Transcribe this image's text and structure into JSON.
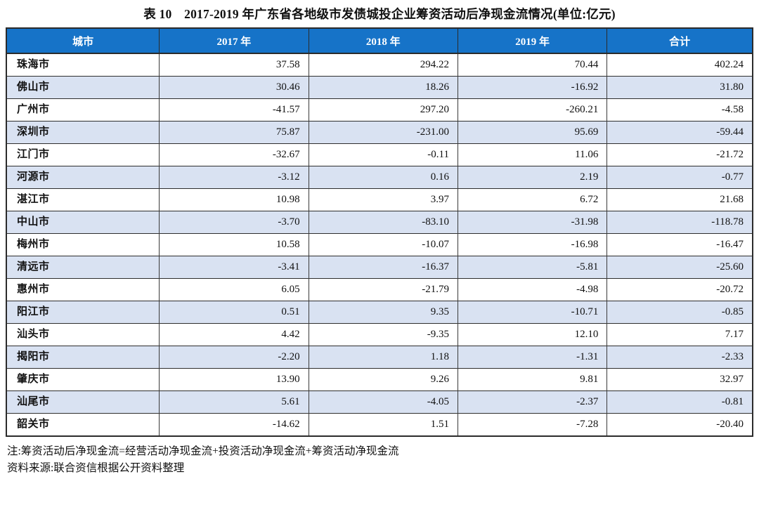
{
  "page": {
    "title": "表 10　2017-2019 年广东省各地级市发债城投企业筹资活动后净现金流情况(单位:亿元)"
  },
  "table": {
    "columns": [
      "城市",
      "2017 年",
      "2018 年",
      "2019 年",
      "合计"
    ],
    "rows": [
      {
        "city": "珠海市",
        "values": [
          "37.58",
          "294.22",
          "70.44",
          "402.24"
        ]
      },
      {
        "city": "佛山市",
        "values": [
          "30.46",
          "18.26",
          "-16.92",
          "31.80"
        ]
      },
      {
        "city": "广州市",
        "values": [
          "-41.57",
          "297.20",
          "-260.21",
          "-4.58"
        ]
      },
      {
        "city": "深圳市",
        "values": [
          "75.87",
          "-231.00",
          "95.69",
          "-59.44"
        ]
      },
      {
        "city": "江门市",
        "values": [
          "-32.67",
          "-0.11",
          "11.06",
          "-21.72"
        ]
      },
      {
        "city": "河源市",
        "values": [
          "-3.12",
          "0.16",
          "2.19",
          "-0.77"
        ]
      },
      {
        "city": "湛江市",
        "values": [
          "10.98",
          "3.97",
          "6.72",
          "21.68"
        ]
      },
      {
        "city": "中山市",
        "values": [
          "-3.70",
          "-83.10",
          "-31.98",
          "-118.78"
        ]
      },
      {
        "city": "梅州市",
        "values": [
          "10.58",
          "-10.07",
          "-16.98",
          "-16.47"
        ]
      },
      {
        "city": "清远市",
        "values": [
          "-3.41",
          "-16.37",
          "-5.81",
          "-25.60"
        ]
      },
      {
        "city": "惠州市",
        "values": [
          "6.05",
          "-21.79",
          "-4.98",
          "-20.72"
        ]
      },
      {
        "city": "阳江市",
        "values": [
          "0.51",
          "9.35",
          "-10.71",
          "-0.85"
        ]
      },
      {
        "city": "汕头市",
        "values": [
          "4.42",
          "-9.35",
          "12.10",
          "7.17"
        ]
      },
      {
        "city": "揭阳市",
        "values": [
          "-2.20",
          "1.18",
          "-1.31",
          "-2.33"
        ]
      },
      {
        "city": "肇庆市",
        "values": [
          "13.90",
          "9.26",
          "9.81",
          "32.97"
        ]
      },
      {
        "city": "汕尾市",
        "values": [
          "5.61",
          "-4.05",
          "-2.37",
          "-0.81"
        ]
      },
      {
        "city": "韶关市",
        "values": [
          "-14.62",
          "1.51",
          "-7.28",
          "-20.40"
        ]
      }
    ]
  },
  "notes": {
    "note": "注:筹资活动后净现金流=经营活动净现金流+投资活动净现金流+筹资活动净现金流",
    "source": "资料来源:联合资信根据公开资料整理"
  },
  "colors": {
    "header_bg": "#1673c8",
    "header_text": "#ffffff",
    "stripe_bg": "#d9e2f2",
    "border": "#2b2b2b"
  }
}
